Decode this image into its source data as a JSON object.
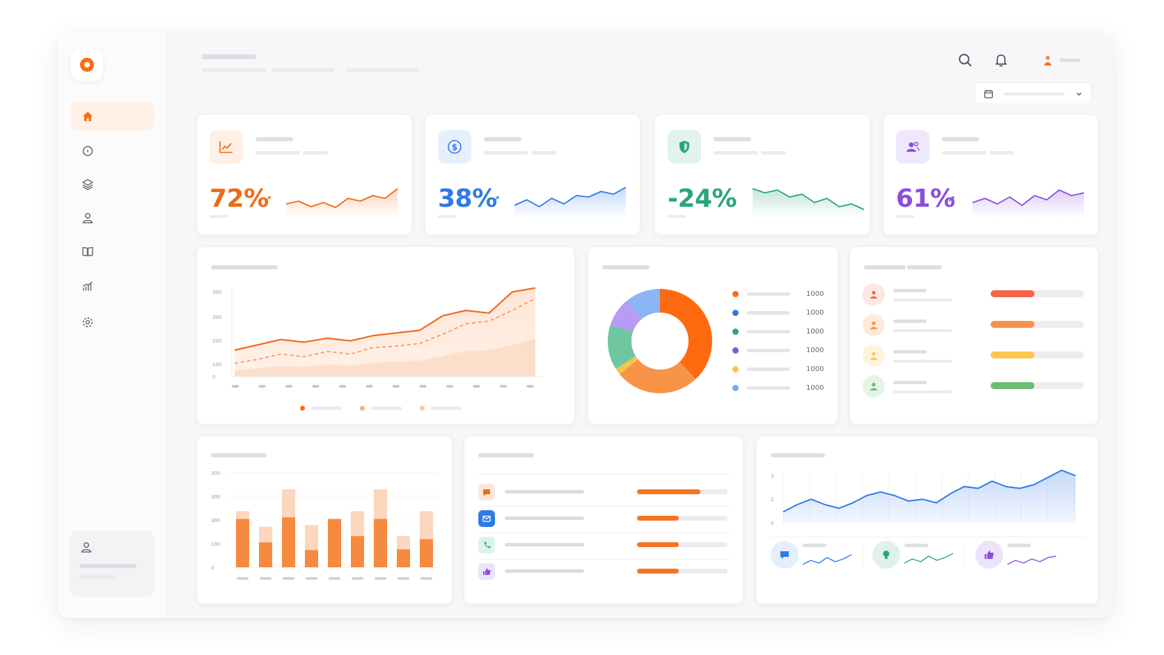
{
  "sidebar": {
    "items": [
      {
        "icon": "home-icon",
        "active": true
      },
      {
        "icon": "chat-icon",
        "active": false
      },
      {
        "icon": "layers-icon",
        "active": false
      },
      {
        "icon": "users-icon",
        "active": false
      },
      {
        "icon": "book-icon",
        "active": false
      },
      {
        "icon": "analytics-icon",
        "active": false
      },
      {
        "icon": "settings-icon",
        "active": false
      }
    ]
  },
  "kpis": [
    {
      "value": "72%",
      "trend": "up",
      "color": "#f06a16",
      "icon": "line-chart-icon",
      "spark": [
        18,
        22,
        14,
        20,
        13,
        26,
        22,
        30,
        26,
        40
      ]
    },
    {
      "value": "38%",
      "trend": "up",
      "color": "#2f7be6",
      "icon": "dollar-icon",
      "spark": [
        16,
        24,
        14,
        26,
        18,
        30,
        28,
        36,
        32,
        42
      ]
    },
    {
      "value": "-24%",
      "trend": "down",
      "color": "#2aa57a",
      "icon": "shield-icon",
      "spark": [
        40,
        34,
        38,
        28,
        32,
        20,
        26,
        14,
        18,
        10
      ]
    },
    {
      "value": "61%",
      "trend": "up",
      "color": "#8a4fe0",
      "icon": "people-icon",
      "spark": [
        20,
        26,
        18,
        28,
        16,
        30,
        24,
        38,
        30,
        34
      ]
    }
  ],
  "area_chart": {
    "y_ticks": [
      "300",
      "300",
      "200",
      "100",
      "0"
    ],
    "series1": [
      40,
      48,
      56,
      52,
      58,
      54,
      62,
      66,
      70,
      92,
      100,
      96,
      128,
      134
    ],
    "series2": [
      20,
      26,
      34,
      30,
      38,
      34,
      44,
      46,
      50,
      64,
      80,
      84,
      100,
      118
    ]
  },
  "donut": {
    "colors": [
      "#ff6a10",
      "#f89448",
      "#f5c44a",
      "#6fc7a1",
      "#b79bf5",
      "#8bb6f5"
    ],
    "values": [
      38,
      26,
      2,
      14,
      9,
      11
    ],
    "legend": [
      {
        "color": "#ff6a10",
        "value": "1000"
      },
      {
        "color": "#2f7be6",
        "value": "1000"
      },
      {
        "color": "#2aa57a",
        "value": "1000"
      },
      {
        "color": "#8a4fe0",
        "value": "1000"
      },
      {
        "color": "#f5c44a",
        "value": "1000"
      },
      {
        "color": "#7aa8ef",
        "value": "1000"
      }
    ]
  },
  "ranking": [
    {
      "color": "#f76448",
      "bg": "#fde7e2",
      "fill": 0.47
    },
    {
      "color": "#f99148",
      "bg": "#feeadb",
      "fill": 0.47
    },
    {
      "color": "#fbc74f",
      "bg": "#fef4dc",
      "fill": 0.47
    },
    {
      "color": "#6dbd73",
      "bg": "#e4f4e5",
      "fill": 0.47
    }
  ],
  "bar_chart": {
    "y_ticks": [
      "300",
      "300",
      "300",
      "100",
      "0"
    ],
    "bars": [
      {
        "total": 0.72,
        "solid": 0.62
      },
      {
        "total": 0.52,
        "solid": 0.32
      },
      {
        "total": 1.0,
        "solid": 0.64
      },
      {
        "total": 0.54,
        "solid": 0.22
      },
      {
        "total": 0.62,
        "solid": 0.62
      },
      {
        "total": 0.72,
        "solid": 0.4
      },
      {
        "total": 1.0,
        "solid": 0.62
      },
      {
        "total": 0.4,
        "solid": 0.23
      },
      {
        "total": 0.72,
        "solid": 0.36
      }
    ]
  },
  "channels": [
    {
      "icon": "message-icon",
      "color": "#f06a16",
      "bg": "#fde6d8",
      "fill": 0.7
    },
    {
      "icon": "mail-icon",
      "color": "#2f7be6",
      "bg": "#2f7be6",
      "fill": 0.46
    },
    {
      "icon": "phone-icon",
      "color": "#2aa57a",
      "bg": "#dff2ea",
      "fill": 0.46
    },
    {
      "icon": "thumbs-up-icon",
      "color": "#8a4fe0",
      "bg": "#ece3fb",
      "fill": 0.46
    }
  ],
  "line_chart": {
    "y_ticks": [
      "3",
      "2",
      "0"
    ],
    "values": [
      12,
      20,
      26,
      20,
      16,
      22,
      30,
      34,
      30,
      24,
      26,
      22,
      32,
      40,
      38,
      46,
      40,
      38,
      42,
      50,
      58,
      52
    ]
  },
  "minis": [
    {
      "icon": "chat-bubble-icon",
      "color": "#2f7be6",
      "bg": "#e4eefc",
      "spark": [
        8,
        14,
        10,
        18,
        12,
        16,
        22
      ]
    },
    {
      "icon": "bulb-icon",
      "color": "#2aa57a",
      "bg": "#dff2ea",
      "spark": [
        10,
        16,
        12,
        20,
        14,
        18,
        24
      ]
    },
    {
      "icon": "thumbs-up-icon",
      "color": "#8a4fe0",
      "bg": "#ece3fb",
      "spark": [
        8,
        14,
        10,
        16,
        12,
        18,
        20
      ]
    }
  ]
}
